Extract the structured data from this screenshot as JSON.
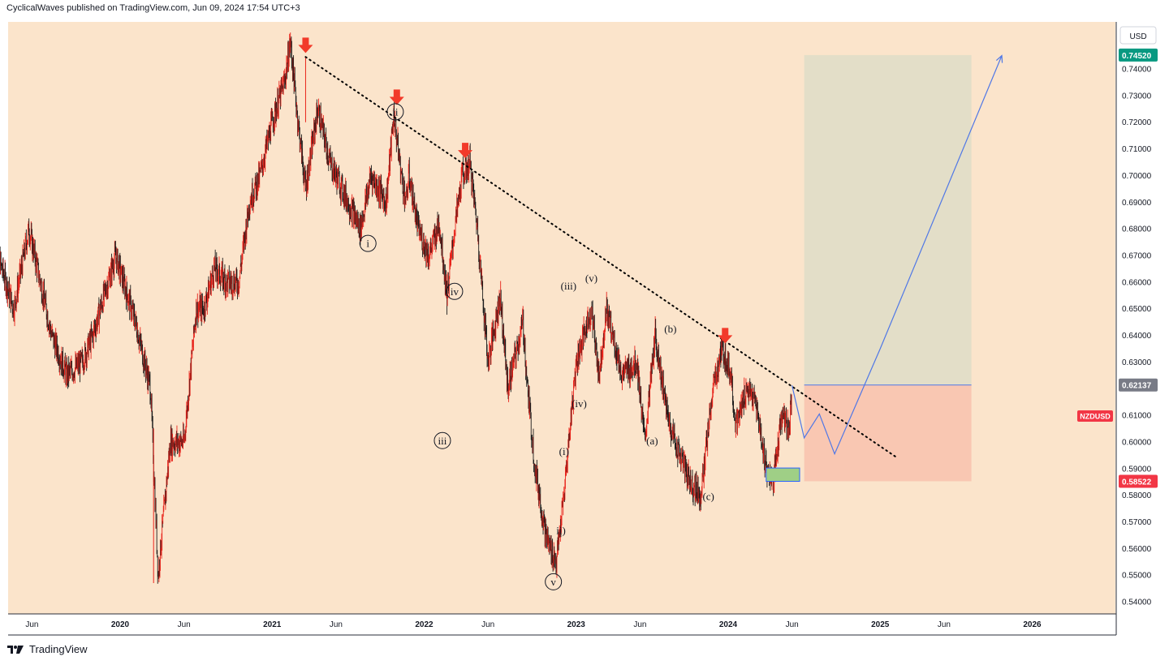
{
  "header": {
    "text": "CyclicalWaves published on TradingView.com, Jun 09, 2024 17:54 UTC+3"
  },
  "footer": {
    "logo_icon": "tradingview-logo-icon",
    "brand": "TradingView"
  },
  "colors": {
    "plot_bg": "#fbe4cb",
    "up": "#e8231b",
    "down": "#1b1b1b",
    "trendline": "#000000",
    "arrow": "#f23a2a",
    "projection": "#4f77e6",
    "target_zone": "#e3dec8",
    "stop_zone": "#f9c7b2",
    "support_box": "#9fcf86",
    "support_box_border": "#2962ff"
  },
  "price_scale": {
    "currency": "USD",
    "ticks": [
      "0.74000",
      "0.73000",
      "0.72000",
      "0.71000",
      "0.70000",
      "0.69000",
      "0.68000",
      "0.67000",
      "0.66000",
      "0.65000",
      "0.64000",
      "0.63000",
      "0.62000",
      "0.61000",
      "0.60000",
      "0.59000",
      "0.58000",
      "0.57000",
      "0.56000",
      "0.55000",
      "0.54000"
    ],
    "badges": [
      {
        "text": "0.74520",
        "value": 0.7452,
        "color": "#089981"
      },
      {
        "text": "0.62137",
        "value": 0.62137,
        "color": "#787b86"
      },
      {
        "text": "0.58522",
        "value": 0.58522,
        "color": "#f23645"
      }
    ],
    "symbol_tag": {
      "text": "NZDUSD",
      "value": 0.6097,
      "color": "#f23645"
    }
  },
  "time_axis": {
    "labels": [
      {
        "text": "Jun",
        "t": 2019.42,
        "bold": false
      },
      {
        "text": "2020",
        "t": 2020.0,
        "bold": true
      },
      {
        "text": "Jun",
        "t": 2020.42,
        "bold": false
      },
      {
        "text": "2021",
        "t": 2021.0,
        "bold": true
      },
      {
        "text": "Jun",
        "t": 2021.42,
        "bold": false
      },
      {
        "text": "2022",
        "t": 2022.0,
        "bold": true
      },
      {
        "text": "Jun",
        "t": 2022.42,
        "bold": false
      },
      {
        "text": "2023",
        "t": 2023.0,
        "bold": true
      },
      {
        "text": "Jun",
        "t": 2023.42,
        "bold": false
      },
      {
        "text": "2024",
        "t": 2024.0,
        "bold": true
      },
      {
        "text": "Jun",
        "t": 2024.42,
        "bold": false
      },
      {
        "text": "2025",
        "t": 2025.0,
        "bold": true
      },
      {
        "text": "Jun",
        "t": 2025.42,
        "bold": false
      },
      {
        "text": "2026",
        "t": 2026.0,
        "bold": true
      }
    ]
  },
  "chart_data": {
    "type": "line",
    "symbol": "NZDUSD",
    "x_unit": "year",
    "ylim": [
      0.535,
      0.755
    ],
    "xlim": [
      2019.15,
      2026.6
    ],
    "series": [
      {
        "name": "NZDUSD",
        "x": [
          2019.17,
          2019.3,
          2019.4,
          2019.55,
          2019.65,
          2019.75,
          2019.82,
          2019.97,
          2020.1,
          2020.2,
          2020.25,
          2020.33,
          2020.42,
          2020.5,
          2020.55,
          2020.62,
          2020.7,
          2020.78,
          2020.85,
          2020.92,
          2021.0,
          2021.08,
          2021.12,
          2021.17,
          2021.22,
          2021.3,
          2021.38,
          2021.42,
          2021.5,
          2021.58,
          2021.65,
          2021.75,
          2021.8,
          2021.85,
          2021.88,
          2021.9,
          2021.96,
          2022.03,
          2022.1,
          2022.15,
          2022.2,
          2022.25,
          2022.3,
          2022.35,
          2022.42,
          2022.5,
          2022.55,
          2022.65,
          2022.68,
          2022.73,
          2022.8,
          2022.83,
          2022.87,
          2022.92,
          2022.95,
          2023.0,
          2023.1,
          2023.15,
          2023.2,
          2023.3,
          2023.4,
          2023.45,
          2023.52,
          2023.6,
          2023.65,
          2023.75,
          2023.82,
          2023.85,
          2023.9,
          2023.96,
          2024.02,
          2024.05,
          2024.12,
          2024.18,
          2024.25,
          2024.3,
          2024.35,
          2024.4,
          2024.42
        ],
        "y": [
          0.675,
          0.65,
          0.68,
          0.64,
          0.625,
          0.63,
          0.64,
          0.67,
          0.645,
          0.62,
          0.55,
          0.6,
          0.6,
          0.65,
          0.65,
          0.665,
          0.66,
          0.66,
          0.69,
          0.7,
          0.72,
          0.735,
          0.75,
          0.72,
          0.695,
          0.725,
          0.705,
          0.7,
          0.69,
          0.68,
          0.7,
          0.69,
          0.723,
          0.7,
          0.69,
          0.7,
          0.68,
          0.67,
          0.682,
          0.655,
          0.68,
          0.7,
          0.705,
          0.68,
          0.63,
          0.655,
          0.62,
          0.645,
          0.62,
          0.59,
          0.565,
          0.56,
          0.555,
          0.58,
          0.6,
          0.63,
          0.65,
          0.625,
          0.65,
          0.625,
          0.63,
          0.6,
          0.64,
          0.61,
          0.6,
          0.585,
          0.58,
          0.595,
          0.62,
          0.635,
          0.625,
          0.605,
          0.62,
          0.615,
          0.59,
          0.585,
          0.61,
          0.605,
          0.62
        ]
      }
    ],
    "trendline": {
      "from": {
        "t": 2021.22,
        "p": 0.7445
      },
      "to": {
        "t": 2025.1,
        "p": 0.5945
      }
    },
    "arrows": [
      {
        "t": 2021.22,
        "p": 0.7475
      },
      {
        "t": 2021.82,
        "p": 0.728
      },
      {
        "t": 2022.27,
        "p": 0.708
      },
      {
        "t": 2023.98,
        "p": 0.6385
      }
    ],
    "position": {
      "t_start": 2024.5,
      "t_end": 2025.6,
      "target": 0.7452,
      "entry": 0.62137,
      "stop": 0.58522
    },
    "support_box": {
      "t_start": 2024.25,
      "t_end": 2024.47,
      "top": 0.5902,
      "bottom": 0.5852
    },
    "projection": {
      "t": [
        2024.42,
        2024.5,
        2024.6,
        2024.7,
        2025.0,
        2025.8
      ],
      "p": [
        0.6212,
        0.6015,
        0.6105,
        0.5955,
        0.635,
        0.745
      ]
    },
    "wave_labels": [
      {
        "text": "i",
        "t": 2021.63,
        "p": 0.6745,
        "circled": true
      },
      {
        "text": "ii",
        "t": 2021.81,
        "p": 0.7239,
        "circled": true
      },
      {
        "text": "iii",
        "t": 2022.12,
        "p": 0.6005,
        "circled": true
      },
      {
        "text": "iv",
        "t": 2022.2,
        "p": 0.6565,
        "circled": true
      },
      {
        "text": "v",
        "t": 2022.85,
        "p": 0.5475,
        "circled": true
      },
      {
        "text": "(iii)",
        "t": 2022.95,
        "p": 0.6585,
        "circled": false
      },
      {
        "text": "(v)",
        "t": 2023.1,
        "p": 0.6615,
        "circled": false
      },
      {
        "text": "(iv)",
        "t": 2023.02,
        "p": 0.6145,
        "circled": false
      },
      {
        "text": "(i)",
        "t": 2022.92,
        "p": 0.5965,
        "circled": false
      },
      {
        "text": "ii)",
        "t": 2022.9,
        "p": 0.5668,
        "circled": false
      },
      {
        "text": "(a)",
        "t": 2023.5,
        "p": 0.6005,
        "circled": false
      },
      {
        "text": "(b)",
        "t": 2023.62,
        "p": 0.6425,
        "circled": false
      },
      {
        "text": "(c)",
        "t": 2023.87,
        "p": 0.5795,
        "circled": false
      }
    ]
  }
}
